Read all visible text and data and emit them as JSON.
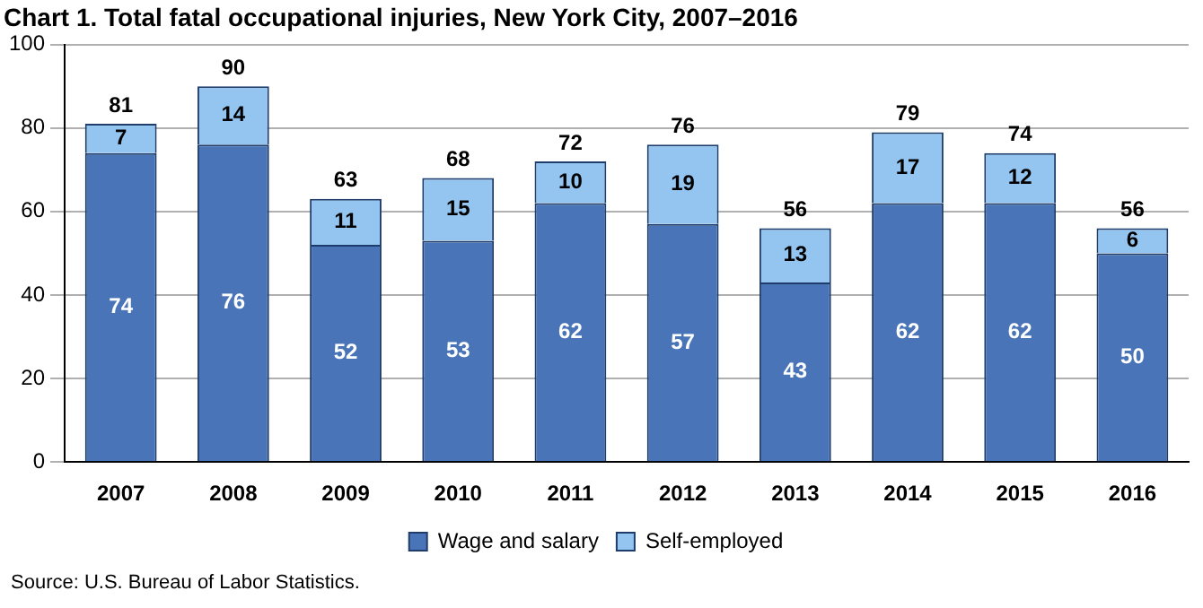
{
  "chart_data": {
    "type": "bar",
    "title": "Chart 1. Total fatal occupational injuries, New York City, 2007–2016",
    "categories": [
      "2007",
      "2008",
      "2009",
      "2010",
      "2011",
      "2012",
      "2013",
      "2014",
      "2015",
      "2016"
    ],
    "series": [
      {
        "name": "Wage and salary",
        "color": "#4a74b8",
        "values": [
          74,
          76,
          52,
          53,
          62,
          57,
          43,
          62,
          62,
          50
        ]
      },
      {
        "name": "Self-employed",
        "color": "#93c5f0",
        "values": [
          7,
          14,
          11,
          15,
          10,
          19,
          13,
          17,
          12,
          6
        ]
      }
    ],
    "stacked": true,
    "data_labels": true,
    "totals": [
      "81",
      "90",
      "63",
      "68",
      "72",
      "76",
      "56",
      "79",
      "74",
      "56"
    ],
    "ylim": [
      0,
      100
    ],
    "yticks": [
      0,
      20,
      40,
      60,
      80,
      100
    ],
    "grid": "y",
    "legend": "bottom",
    "annotations": [
      "Source: U.S. Bureau of Labor Statistics."
    ]
  }
}
